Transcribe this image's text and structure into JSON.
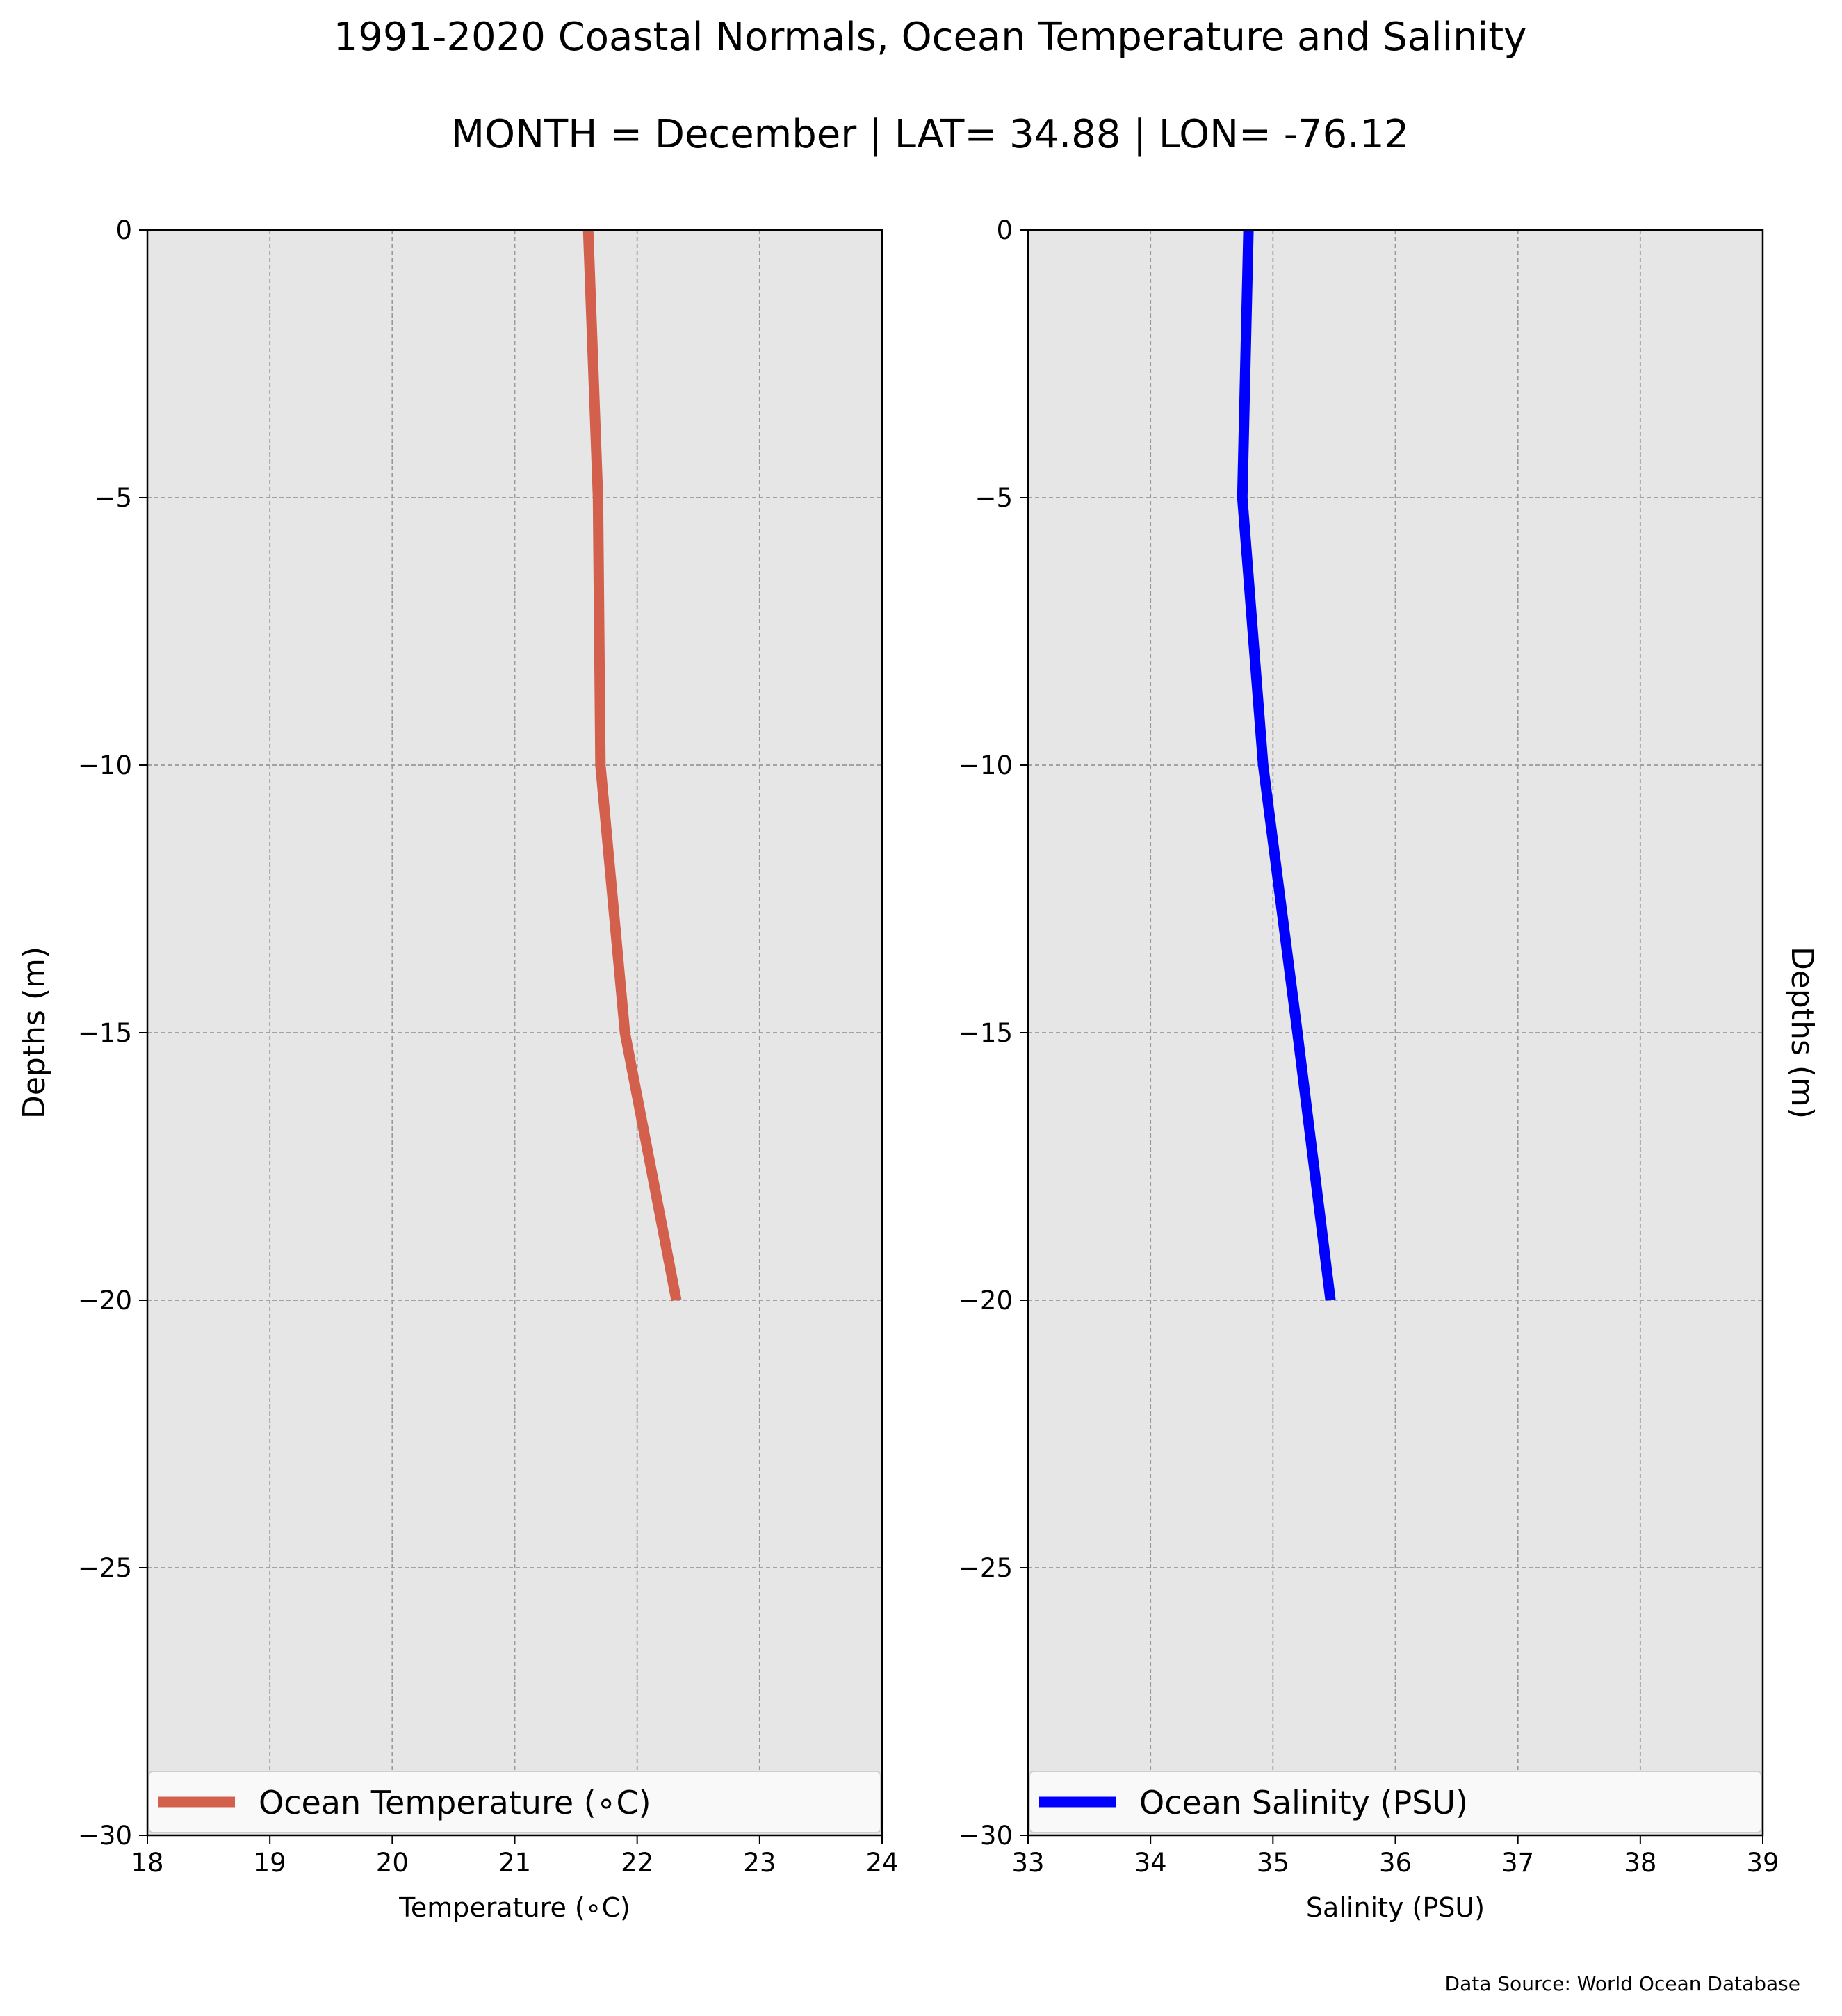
{
  "title": "1991-2020 Coastal Normals, Ocean Temperature and Salinity",
  "subtitle": "MONTH = December | LAT= 34.88 | LON= -76.12",
  "source_note": "Data Source: World Ocean Database",
  "colors": {
    "panel_background": "#e6e6e6",
    "grid": "#999999",
    "temperature_line": "#d35f4d",
    "salinity_line": "#0000ff"
  },
  "chart_data": [
    {
      "type": "line",
      "xlabel": "Temperature ($^\\circ$C)",
      "xlabel_display": "Temperature (∘C)",
      "ylabel": "Depths (m)",
      "xlim": [
        18,
        24
      ],
      "ylim": [
        -30,
        0
      ],
      "xticks": [
        "18",
        "19",
        "20",
        "21",
        "22",
        "23",
        "24"
      ],
      "yticks": [
        "0",
        "−5",
        "−10",
        "−15",
        "−20",
        "−25",
        "−30"
      ],
      "grid": true,
      "legend_position": "bottom",
      "series": [
        {
          "name": "Ocean Temperature (∘C)",
          "color": "#d35f4d",
          "points": [
            {
              "x": 21.6,
              "y": 0
            },
            {
              "x": 21.68,
              "y": -5
            },
            {
              "x": 21.7,
              "y": -10
            },
            {
              "x": 21.9,
              "y": -15
            },
            {
              "x": 22.32,
              "y": -20
            }
          ]
        }
      ]
    },
    {
      "type": "line",
      "xlabel": "Salinity (PSU)",
      "ylabel": "Depths (m)",
      "xlim": [
        33,
        39
      ],
      "ylim": [
        -30,
        0
      ],
      "xticks": [
        "33",
        "34",
        "35",
        "36",
        "37",
        "38",
        "39"
      ],
      "yticks": [
        "0",
        "−5",
        "−10",
        "−15",
        "−20",
        "−25",
        "−30"
      ],
      "grid": true,
      "legend_position": "bottom",
      "series": [
        {
          "name": "Ocean Salinity (PSU)",
          "color": "#0000ff",
          "points": [
            {
              "x": 34.8,
              "y": 0
            },
            {
              "x": 34.75,
              "y": -5
            },
            {
              "x": 34.92,
              "y": -10
            },
            {
              "x": 35.2,
              "y": -15
            },
            {
              "x": 35.47,
              "y": -20
            }
          ]
        }
      ]
    }
  ]
}
